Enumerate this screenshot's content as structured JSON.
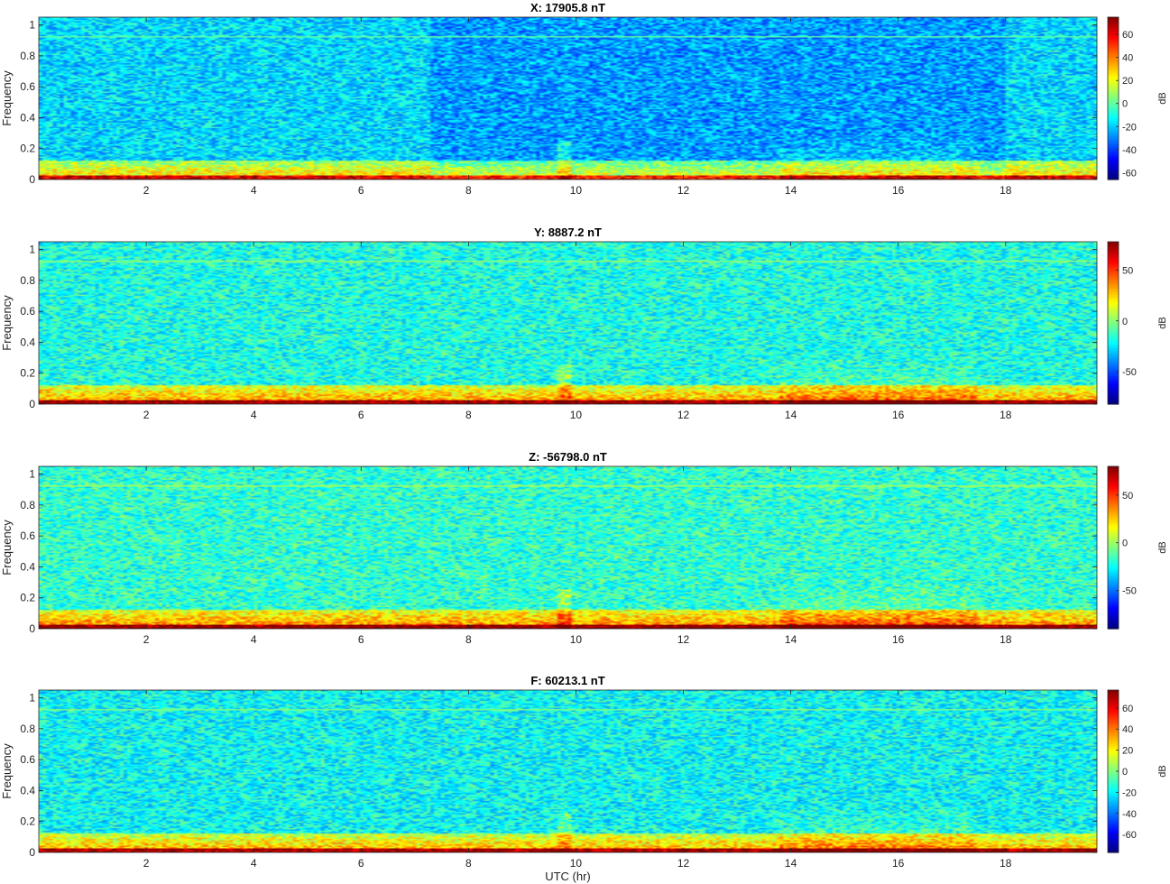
{
  "chart_data": [
    {
      "type": "heatmap",
      "title": "X: 17905.8 nT",
      "ylabel": "Frequency",
      "xlabel": "",
      "xlim": [
        0,
        19.7
      ],
      "ylim": [
        0,
        1.05
      ],
      "xticks": [
        2,
        4,
        6,
        8,
        10,
        12,
        14,
        16,
        18
      ],
      "yticks": [
        0,
        0.2,
        0.4,
        0.6,
        0.8,
        1
      ],
      "colorbar": {
        "label": "dB",
        "clim": [
          -66,
          75
        ],
        "ticks": [
          60,
          40,
          20,
          0,
          -20,
          -40,
          -60
        ]
      },
      "colormap": "jet"
    },
    {
      "type": "heatmap",
      "title": "Y: 8887.2 nT",
      "ylabel": "Frequency",
      "xlabel": "",
      "xlim": [
        0,
        19.7
      ],
      "ylim": [
        0,
        1.05
      ],
      "xticks": [
        2,
        4,
        6,
        8,
        10,
        12,
        14,
        16,
        18
      ],
      "yticks": [
        0,
        0.2,
        0.4,
        0.6,
        0.8,
        1
      ],
      "colorbar": {
        "label": "dB",
        "clim": [
          -82,
          78
        ],
        "ticks": [
          50,
          0,
          -50
        ]
      },
      "colormap": "jet"
    },
    {
      "type": "heatmap",
      "title": "Z: -56798.0 nT",
      "ylabel": "Frequency",
      "xlabel": "",
      "xlim": [
        0,
        19.7
      ],
      "ylim": [
        0,
        1.05
      ],
      "xticks": [
        2,
        4,
        6,
        8,
        10,
        12,
        14,
        16,
        18
      ],
      "yticks": [
        0,
        0.2,
        0.4,
        0.6,
        0.8,
        1
      ],
      "colorbar": {
        "label": "dB",
        "clim": [
          -90,
          80
        ],
        "ticks": [
          50,
          0,
          -50
        ]
      },
      "colormap": "jet"
    },
    {
      "type": "heatmap",
      "title": "F: 60213.1 nT",
      "ylabel": "Frequency",
      "xlabel": "UTC (hr)",
      "xlim": [
        0,
        19.7
      ],
      "ylim": [
        0,
        1.05
      ],
      "xticks": [
        2,
        4,
        6,
        8,
        10,
        12,
        14,
        16,
        18
      ],
      "yticks": [
        0,
        0.2,
        0.4,
        0.6,
        0.8,
        1
      ],
      "colorbar": {
        "label": "dB",
        "clim": [
          -77,
          77
        ],
        "ticks": [
          60,
          40,
          20,
          0,
          -20,
          -40,
          -60
        ]
      },
      "colormap": "jet"
    }
  ]
}
